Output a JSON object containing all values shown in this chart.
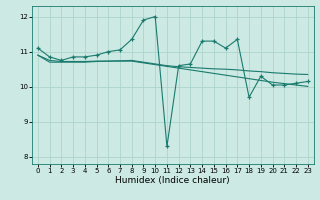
{
  "xlabel": "Humidex (Indice chaleur)",
  "bg_color": "#cce9e3",
  "grid_color": "#aed4cc",
  "line_color": "#1a7a6e",
  "xlim": [
    -0.5,
    23.5
  ],
  "ylim": [
    7.8,
    12.3
  ],
  "yticks": [
    8,
    9,
    10,
    11,
    12
  ],
  "xticks": [
    0,
    1,
    2,
    3,
    4,
    5,
    6,
    7,
    8,
    9,
    10,
    11,
    12,
    13,
    14,
    15,
    16,
    17,
    18,
    19,
    20,
    21,
    22,
    23
  ],
  "series1_x": [
    0,
    1,
    2,
    3,
    4,
    5,
    6,
    7,
    8,
    9,
    10,
    11,
    12,
    13,
    14,
    15,
    16,
    17,
    18,
    19,
    20,
    21,
    22,
    23
  ],
  "series1_y": [
    11.1,
    10.85,
    10.75,
    10.85,
    10.85,
    10.9,
    11.0,
    11.05,
    11.35,
    11.9,
    12.0,
    8.3,
    10.6,
    10.65,
    11.3,
    11.3,
    11.1,
    11.35,
    9.7,
    10.3,
    10.05,
    10.05,
    10.1,
    10.15
  ],
  "series2_x": [
    0,
    1,
    2,
    3,
    4,
    5,
    6,
    7,
    8,
    9,
    10,
    11,
    12,
    13,
    14,
    15,
    16,
    17,
    18,
    19,
    20,
    21,
    22,
    23
  ],
  "series2_y": [
    10.9,
    10.7,
    10.7,
    10.7,
    10.7,
    10.72,
    10.73,
    10.74,
    10.75,
    10.7,
    10.65,
    10.6,
    10.57,
    10.55,
    10.53,
    10.51,
    10.5,
    10.48,
    10.45,
    10.43,
    10.4,
    10.38,
    10.36,
    10.35
  ],
  "series3_x": [
    0,
    1,
    2,
    3,
    4,
    5,
    6,
    7,
    8,
    9,
    10,
    11,
    12,
    13,
    14,
    15,
    16,
    17,
    18,
    19,
    20,
    21,
    22,
    23
  ],
  "series3_y": [
    10.9,
    10.75,
    10.72,
    10.72,
    10.72,
    10.73,
    10.73,
    10.73,
    10.73,
    10.68,
    10.63,
    10.58,
    10.53,
    10.48,
    10.43,
    10.38,
    10.33,
    10.28,
    10.23,
    10.18,
    10.13,
    10.09,
    10.05,
    10.01
  ]
}
